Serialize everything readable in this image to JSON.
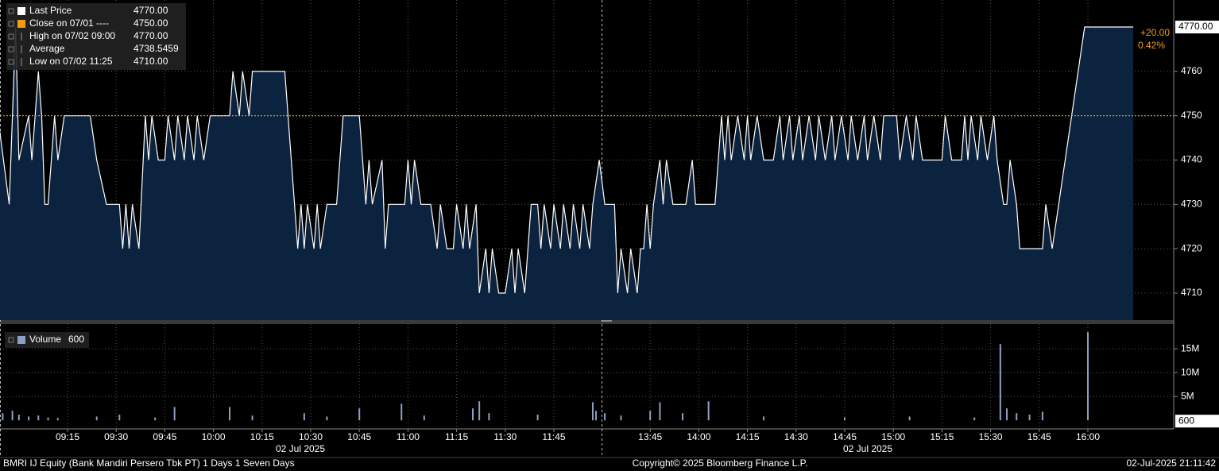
{
  "chart_data": [
    {
      "type": "area",
      "series": [
        {
          "name": "Last Price",
          "color": "#ffffff",
          "fill": "#0c2340",
          "values": [
            4747,
            4730,
            4770,
            4740,
            4750,
            4740,
            4760,
            4750,
            4730,
            4730,
            4750,
            4740,
            4750,
            4750,
            4740,
            4730,
            4730,
            4720,
            4730,
            4720,
            4730,
            4720,
            4750,
            4740,
            4750,
            4740,
            4740,
            4750,
            4740,
            4750,
            4740,
            4750,
            4740,
            4750,
            4740,
            4750,
            4750,
            4760,
            4750,
            4760,
            4750,
            4760,
            4760,
            4720,
            4730,
            4720,
            4730,
            4720,
            4730,
            4720,
            4730,
            4730,
            4750,
            4750,
            4730,
            4740,
            4730,
            4740,
            4720,
            4730,
            4730,
            4740,
            4730,
            4740,
            4730,
            4730,
            4720,
            4730,
            4720,
            4720,
            4730,
            4720,
            4730,
            4720,
            4730,
            4710,
            4720,
            4710,
            4720,
            4710,
            4710,
            4720,
            4710,
            4720,
            4710,
            4730,
            4730,
            4720,
            4730,
            4720,
            4730,
            4720,
            4730,
            4720,
            4730,
            4720,
            4730,
            4720,
            4730,
            4740,
            4730,
            4730,
            4710,
            4720,
            4710,
            4720,
            4710,
            4720,
            4720,
            4730,
            4720,
            4730,
            4740,
            4730,
            4740,
            4730,
            4730,
            4740,
            4730,
            4730,
            4750,
            4740,
            4750,
            4740,
            4750,
            4740,
            4750,
            4740,
            4750,
            4740,
            4740,
            4750,
            4740,
            4750,
            4740,
            4750,
            4740,
            4750,
            4740,
            4750,
            4740,
            4750,
            4740,
            4750,
            4740,
            4750,
            4740,
            4750,
            4740,
            4750,
            4740,
            4750,
            4750,
            4740,
            4750,
            4740,
            4750,
            4740,
            4740,
            4750,
            4740,
            4740,
            4750,
            4740,
            4750,
            4740,
            4750,
            4740,
            4750,
            4740,
            4730,
            4730,
            4740,
            4730,
            4720,
            4720,
            4730,
            4720,
            4770,
            4770
          ]
        }
      ],
      "x": [
        "08:54",
        "08:57",
        "08:59",
        "09:00",
        "09:03",
        "09:04",
        "09:06",
        "09:07",
        "09:08",
        "09:09",
        "09:11",
        "09:12",
        "09:14",
        "09:22",
        "09:24",
        "09:27",
        "09:31",
        "09:32",
        "09:33",
        "09:34",
        "09:35",
        "09:37",
        "09:39",
        "09:40",
        "09:41",
        "09:43",
        "09:45",
        "09:46",
        "09:48",
        "09:49",
        "09:51",
        "09:52",
        "09:54",
        "09:55",
        "09:57",
        "09:59",
        "10:05",
        "10:06",
        "10:08",
        "10:09",
        "10:11",
        "10:12",
        "10:22",
        "10:26",
        "10:27",
        "10:28",
        "10:29",
        "10:31",
        "10:32",
        "10:33",
        "10:35",
        "10:38",
        "10:40",
        "10:45",
        "10:47",
        "10:48",
        "10:49",
        "10:52",
        "10:53",
        "10:54",
        "10:59",
        "11:00",
        "11:01",
        "11:02",
        "11:04",
        "11:07",
        "11:09",
        "11:10",
        "11:12",
        "11:14",
        "11:15",
        "11:17",
        "11:18",
        "11:19",
        "11:21",
        "11:22",
        "11:24",
        "11:25",
        "11:26",
        "11:28",
        "11:30",
        "11:32",
        "11:33",
        "11:34",
        "11:36",
        "11:38",
        "11:40",
        "11:41",
        "11:42",
        "11:44",
        "11:45",
        "11:47",
        "11:48",
        "11:50",
        "11:51",
        "11:53",
        "11:54",
        "11:56",
        "11:57",
        "11:59",
        "13:31",
        "13:34",
        "13:35",
        "13:36",
        "13:38",
        "13:39",
        "13:41",
        "13:42",
        "13:43",
        "13:44",
        "13:45",
        "13:46",
        "13:48",
        "13:49",
        "13:50",
        "13:52",
        "13:56",
        "13:58",
        "13:59",
        "14:05",
        "14:07",
        "14:08",
        "14:09",
        "14:10",
        "14:12",
        "14:14",
        "14:15",
        "14:16",
        "14:18",
        "14:20",
        "14:23",
        "14:25",
        "14:26",
        "14:28",
        "14:29",
        "14:31",
        "14:32",
        "14:34",
        "14:36",
        "14:37",
        "14:39",
        "14:41",
        "14:42",
        "14:44",
        "14:46",
        "14:47",
        "14:49",
        "14:51",
        "14:52",
        "14:54",
        "14:56",
        "14:57",
        "15:01",
        "15:02",
        "15:04",
        "15:06",
        "15:07",
        "15:09",
        "15:15",
        "15:16",
        "15:18",
        "15:21",
        "15:22",
        "15:23",
        "15:24",
        "15:26",
        "15:27",
        "15:29",
        "15:31",
        "15:32",
        "15:34",
        "15:35",
        "15:36",
        "15:38",
        "15:39",
        "15:46",
        "15:47",
        "15:49",
        "15:59",
        "16:14"
      ],
      "ylim": [
        4703.9,
        4776.1
      ],
      "yticks": [
        4710,
        4720,
        4730,
        4740,
        4750,
        4760
      ],
      "grid": true,
      "legend": [
        {
          "name": "Last Price",
          "value": "4770.00",
          "color": "#ffffff"
        },
        {
          "name": "Close on 07/01 ----",
          "value": "4750.00",
          "color": "#f39c12"
        },
        {
          "name": "High on 07/02 09:00",
          "value": "4770.00"
        },
        {
          "name": "Average",
          "value": "4738.5459"
        },
        {
          "name": "Low on 07/02 11:25",
          "value": "4710.00"
        }
      ],
      "reference_line": {
        "value": 4750,
        "color": "#f39c12"
      },
      "last_label": "4770.00",
      "change": "+20.00",
      "change_pct": "0.42%"
    },
    {
      "type": "bar",
      "series": [
        {
          "name": "Volume",
          "color": "#8da0c4",
          "values": [
            1500000,
            2000000,
            1200000,
            800000,
            1000000,
            600000,
            500000,
            800000,
            1200000,
            600000,
            2800000,
            2800000,
            1000000,
            1500000,
            800000,
            2500000,
            3500000,
            1000000,
            2500000,
            4000000,
            1500000,
            1200000,
            3800000,
            2000000,
            1500000,
            1000000,
            2000000,
            3800000,
            1500000,
            4000000,
            800000,
            600000,
            800000,
            600000,
            16000000,
            2500000,
            1500000,
            1200000,
            1800000,
            18500000
          ]
        }
      ],
      "x": [
        "08:55",
        "08:58",
        "09:00",
        "09:03",
        "09:06",
        "09:09",
        "09:12",
        "09:24",
        "09:31",
        "09:42",
        "09:48",
        "10:05",
        "10:12",
        "10:28",
        "10:35",
        "10:45",
        "10:58",
        "11:05",
        "11:20",
        "11:22",
        "11:25",
        "11:40",
        "11:57",
        "11:58",
        "13:31",
        "13:36",
        "13:45",
        "13:48",
        "13:55",
        "14:03",
        "14:20",
        "14:45",
        "15:05",
        "15:25",
        "15:33",
        "15:35",
        "15:38",
        "15:42",
        "15:46",
        "16:00"
      ],
      "ylim": [
        -1800000,
        20200000
      ],
      "yticks": [
        {
          "value": 5000000,
          "label": "5M"
        },
        {
          "value": 10000000,
          "label": "10M"
        },
        {
          "value": 15000000,
          "label": "15M"
        }
      ],
      "grid": true,
      "legend": [
        {
          "name": "Volume",
          "value": "600",
          "color": "#8da0c4"
        }
      ],
      "last_label": "600"
    }
  ],
  "x_axis": {
    "ticks": [
      "09:15",
      "09:30",
      "09:45",
      "10:00",
      "10:15",
      "10:30",
      "10:45",
      "11:00",
      "11:15",
      "11:30",
      "11:45",
      "13:45",
      "14:00",
      "14:15",
      "14:30",
      "14:45",
      "15:00",
      "15:15",
      "15:30",
      "15:45",
      "16:00"
    ],
    "date_labels": [
      "02 Jul 2025",
      "02 Jul 2025"
    ]
  },
  "footer": {
    "left": "BMRI IJ Equity (Bank Mandiri Persero Tbk PT) 1 Days 1 Seven Days",
    "center": "Copyright© 2025 Bloomberg Finance L.P.",
    "right": "02-Jul-2025 21:11:42"
  }
}
